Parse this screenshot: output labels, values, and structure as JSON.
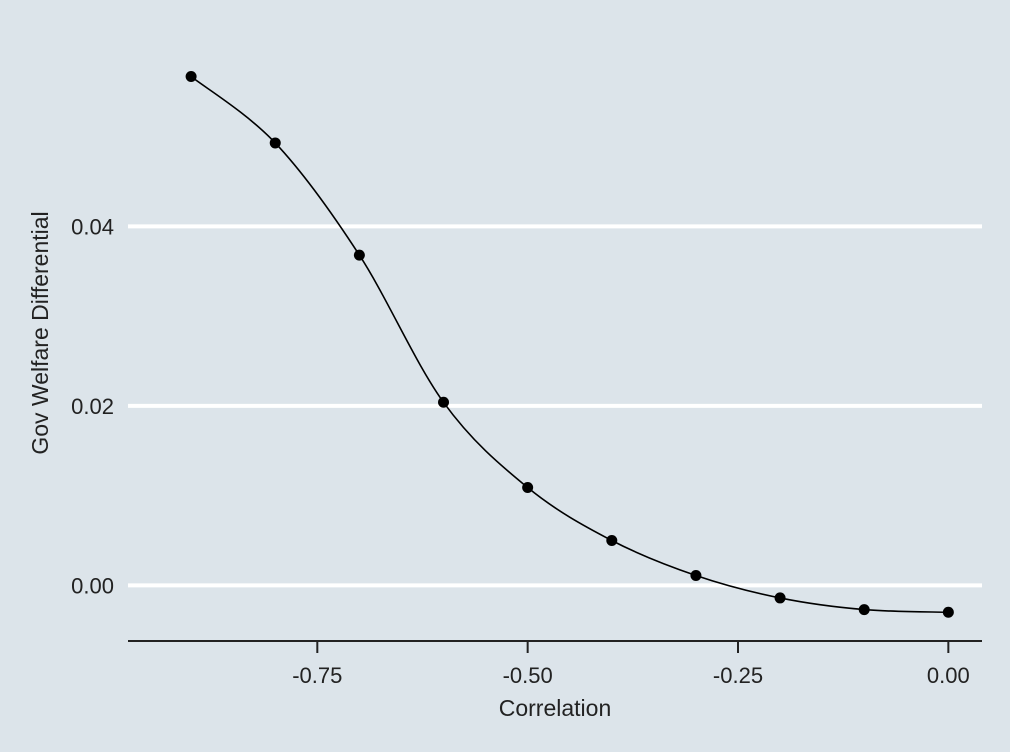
{
  "chart_data": {
    "type": "line",
    "title": "",
    "xlabel": "Correlation",
    "ylabel": "Gov  Welfare Differential",
    "x": [
      -0.9,
      -0.8,
      -0.7,
      -0.6,
      -0.5,
      -0.4,
      -0.3,
      -0.2,
      -0.1,
      0.0
    ],
    "series": [
      {
        "values": [
          0.0567,
          0.0493,
          0.0368,
          0.0204,
          0.0109,
          0.005,
          0.0011,
          -0.0014,
          -0.0027,
          -0.003
        ]
      }
    ],
    "xlim": [
      -0.975,
      0.04
    ],
    "ylim": [
      -0.0062,
      0.063
    ],
    "x_ticks": [
      -0.75,
      -0.5,
      -0.25,
      0.0
    ],
    "x_tick_labels": [
      "-0.75",
      "-0.50",
      "-0.25",
      "0.00"
    ],
    "y_ticks": [
      0.0,
      0.02,
      0.04
    ],
    "y_tick_labels": [
      "0.00",
      "0.02",
      "0.04"
    ],
    "grid": "horizontal",
    "legend": "none",
    "colors": {
      "background": "#dce4ea",
      "gridline": "#ffffff",
      "line": "#000000",
      "marker": "#000000",
      "axis": "#222222"
    }
  }
}
